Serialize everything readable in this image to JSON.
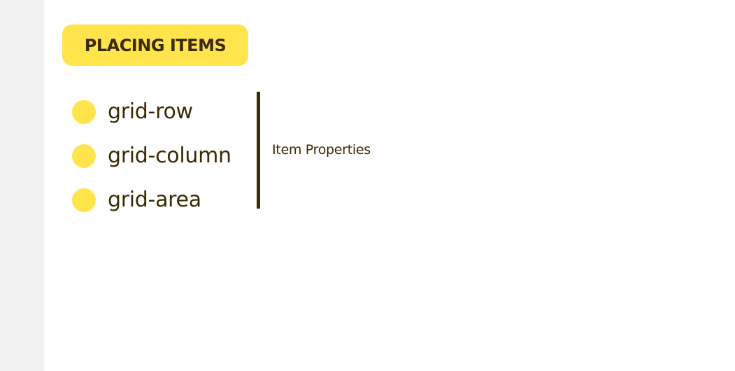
{
  "badge": {
    "label": "PLACING ITEMS"
  },
  "properties": {
    "items": [
      {
        "label": "grid-row"
      },
      {
        "label": "grid-column"
      },
      {
        "label": "grid-area"
      }
    ],
    "group_caption": "Item Properties"
  },
  "colors": {
    "accent_yellow": "#ffe44b",
    "text_dark_brown": "#3a2a06",
    "background": "#ffffff",
    "gutter": "#f2f2f2"
  }
}
